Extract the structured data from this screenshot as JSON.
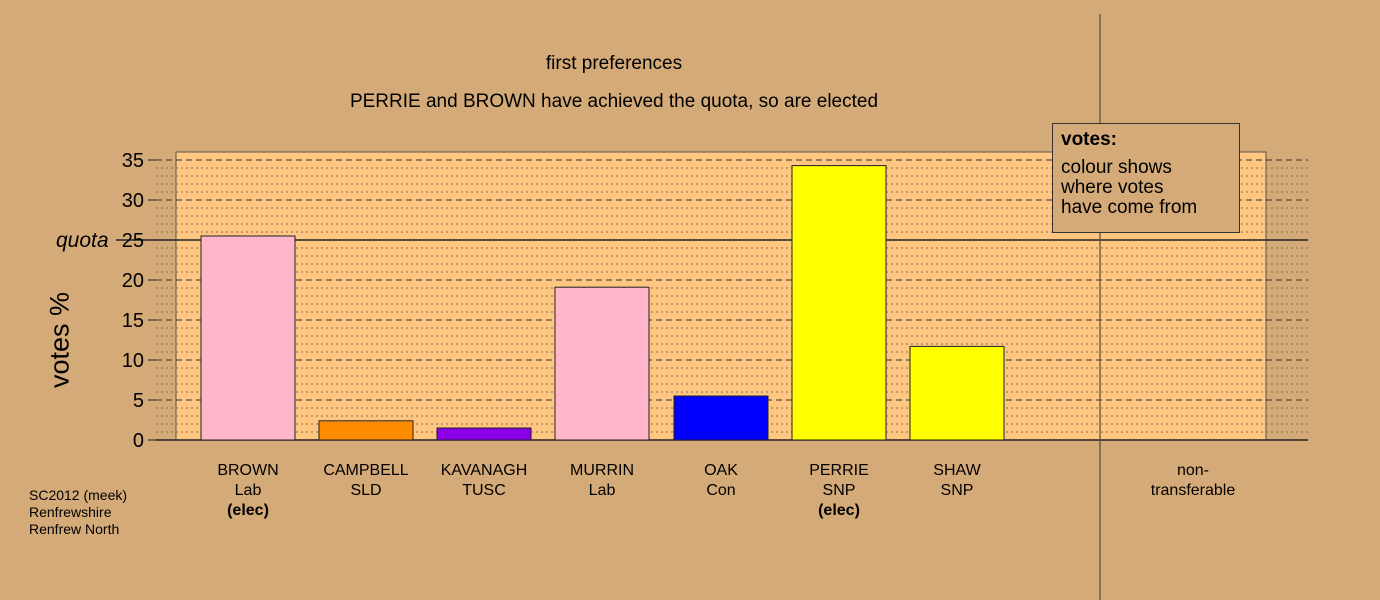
{
  "chart_data": {
    "type": "bar",
    "title": "first preferences",
    "subtitle": "PERRIE and BROWN have achieved the quota, so are elected",
    "ylabel": "votes %",
    "ylim": [
      0,
      35
    ],
    "yticks": [
      "0",
      "5",
      "10",
      "15",
      "20",
      "25",
      "30",
      "35"
    ],
    "quota": {
      "label": "quota",
      "value": 25
    },
    "categories": [
      {
        "name": "BROWN",
        "party": "Lab",
        "status": "(elec)",
        "value": 25.5,
        "color": "#ffb6c8"
      },
      {
        "name": "CAMPBELL",
        "party": "SLD",
        "status": "",
        "value": 2.4,
        "color": "#ff8c00"
      },
      {
        "name": "KAVANAGH",
        "party": "TUSC",
        "status": "",
        "value": 1.5,
        "color": "#8b00e8"
      },
      {
        "name": "MURRIN",
        "party": "Lab",
        "status": "",
        "value": 19.1,
        "color": "#ffb6c8"
      },
      {
        "name": "OAK",
        "party": "Con",
        "status": "",
        "value": 5.5,
        "color": "#0000ff"
      },
      {
        "name": "PERRIE",
        "party": "SNP",
        "status": "(elec)",
        "value": 34.3,
        "color": "#ffff00"
      },
      {
        "name": "SHAW",
        "party": "SNP",
        "status": "",
        "value": 11.7,
        "color": "#ffff00"
      },
      {
        "name": "",
        "party": "",
        "status": "",
        "value": 0,
        "color": "#d4aa78"
      },
      {
        "name": "non-",
        "party": "transferable",
        "status": "",
        "value": 0,
        "color": "#d4aa78"
      }
    ],
    "grid": true,
    "legend_position": "top-right",
    "legend": {
      "title": "votes:",
      "lines": [
        "colour shows",
        "where votes",
        "have come from"
      ]
    }
  },
  "footer": {
    "lines": [
      "SC2012 (meek)",
      "Renfrewshire",
      "Renfrew North"
    ]
  },
  "colors": {
    "background": "#d4aa78",
    "plot_band": "#ffc682"
  }
}
